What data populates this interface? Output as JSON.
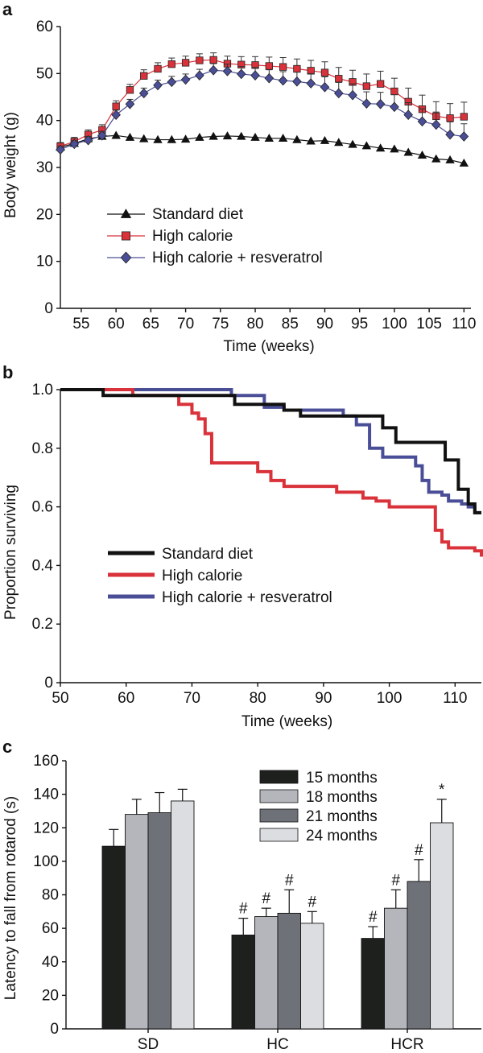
{
  "colors": {
    "standard": "#111111",
    "high_calorie": "#d9323a",
    "resveratrol": "#4a4e96",
    "bar_15": "#1e201e",
    "bar_18": "#b4b6bc",
    "bar_21": "#6e7278",
    "bar_24": "#dcdde1"
  },
  "chart_data": [
    {
      "id": "a",
      "panel_letter": "a",
      "type": "line",
      "xlabel": "Time (weeks)",
      "ylabel": "Body weight (g)",
      "xlim": [
        52,
        111
      ],
      "ylim": [
        0,
        60
      ],
      "xticks": [
        55,
        60,
        65,
        70,
        75,
        80,
        85,
        90,
        95,
        100,
        105,
        110
      ],
      "yticks": [
        0,
        10,
        20,
        30,
        40,
        50,
        60
      ],
      "grid": false,
      "legend_position": "center-left",
      "x": [
        52,
        54,
        56,
        58,
        60,
        62,
        64,
        66,
        68,
        70,
        72,
        74,
        76,
        78,
        80,
        82,
        84,
        86,
        88,
        90,
        92,
        94,
        96,
        98,
        100,
        102,
        104,
        106,
        108,
        110
      ],
      "series": [
        {
          "name": "Standard diet",
          "marker": "triangle",
          "color_key": "standard",
          "values": [
            34.3,
            35.1,
            36.1,
            36.6,
            36.8,
            36.4,
            36.1,
            35.9,
            35.9,
            36.0,
            36.4,
            36.6,
            36.7,
            36.6,
            36.4,
            36.2,
            36.2,
            35.9,
            35.6,
            35.7,
            35.3,
            34.9,
            34.6,
            34.1,
            33.9,
            33.2,
            32.6,
            31.8,
            31.6,
            30.9
          ],
          "errors": [
            0.6,
            0.6,
            0.6,
            0.6,
            0.6,
            0.6,
            0.6,
            0.6,
            0.6,
            0.6,
            0.6,
            0.6,
            0.6,
            0.6,
            0.6,
            0.6,
            0.6,
            0.6,
            0.6,
            0.6,
            0.6,
            0.6,
            0.6,
            0.6,
            0.6,
            0.6,
            0.6,
            0.6,
            0.6,
            0.6
          ]
        },
        {
          "name": "High calorie",
          "marker": "square",
          "color_key": "high_calorie",
          "values": [
            34.5,
            35.5,
            37.0,
            38.0,
            43.0,
            46.5,
            49.5,
            51.0,
            52.0,
            52.3,
            52.8,
            52.9,
            52.1,
            51.9,
            51.8,
            51.6,
            51.4,
            51.0,
            50.6,
            50.2,
            48.9,
            48.2,
            47.3,
            47.8,
            46.2,
            44.0,
            42.4,
            40.9,
            40.5,
            40.8
          ],
          "errors": [
            0.8,
            0.9,
            1.0,
            1.1,
            1.2,
            1.2,
            1.3,
            1.3,
            1.3,
            1.4,
            1.4,
            1.5,
            1.6,
            1.7,
            1.8,
            1.9,
            2.0,
            2.1,
            2.2,
            2.3,
            2.4,
            2.5,
            2.6,
            2.7,
            2.8,
            2.9,
            3.0,
            3.1,
            3.1,
            3.1
          ]
        },
        {
          "name": "High calorie + resveratrol",
          "marker": "diamond",
          "color_key": "resveratrol",
          "values": [
            33.8,
            35.0,
            35.8,
            36.8,
            41.2,
            43.5,
            45.8,
            47.5,
            48.2,
            48.7,
            49.6,
            50.7,
            50.5,
            49.9,
            49.6,
            49.0,
            48.5,
            48.3,
            47.9,
            47.1,
            45.8,
            45.4,
            43.6,
            43.5,
            42.9,
            41.2,
            39.8,
            39.1,
            37.0,
            36.6
          ],
          "errors": [
            0.7,
            0.7,
            0.8,
            0.9,
            1.0,
            1.0,
            1.1,
            1.1,
            1.2,
            1.2,
            1.3,
            1.4,
            1.5,
            1.6,
            1.7,
            1.8,
            1.9,
            2.0,
            2.1,
            2.2,
            2.3,
            2.4,
            2.5,
            2.5,
            2.6,
            2.6,
            2.7,
            2.7,
            2.7,
            2.7
          ]
        }
      ]
    },
    {
      "id": "b",
      "panel_letter": "b",
      "type": "line",
      "step": true,
      "xlabel": "Time (weeks)",
      "ylabel": "Proportion surviving",
      "xlim": [
        50,
        114
      ],
      "ylim": [
        0,
        1.0
      ],
      "xticks": [
        50,
        60,
        70,
        80,
        90,
        100,
        110
      ],
      "ytick_labels": [
        "0",
        "0.2",
        "0.4",
        "0.6",
        "0.8",
        "1.0"
      ],
      "yticks": [
        0,
        0.2,
        0.4,
        0.6,
        0.8,
        1.0
      ],
      "grid": false,
      "legend_position": "center-left",
      "series": [
        {
          "name": "Standard diet",
          "color_key": "standard",
          "x": [
            50,
            56.5,
            58,
            76.5,
            78,
            84,
            86.5,
            96,
            99,
            101,
            105,
            108.5,
            110.5,
            112,
            113,
            114
          ],
          "values": [
            1.0,
            0.98,
            0.98,
            0.95,
            0.95,
            0.93,
            0.91,
            0.91,
            0.87,
            0.82,
            0.82,
            0.76,
            0.66,
            0.61,
            0.58,
            0.58
          ]
        },
        {
          "name": "High calorie",
          "color_key": "high_calorie",
          "x": [
            50,
            60,
            61,
            66,
            68,
            69,
            70,
            71,
            72,
            73,
            76,
            79,
            80,
            82,
            84,
            88,
            92,
            94,
            96,
            98,
            100,
            106,
            107,
            108,
            109,
            112,
            113,
            114
          ],
          "values": [
            1.0,
            1.0,
            0.98,
            0.98,
            0.95,
            0.95,
            0.92,
            0.9,
            0.85,
            0.75,
            0.75,
            0.75,
            0.72,
            0.69,
            0.67,
            0.67,
            0.65,
            0.65,
            0.63,
            0.62,
            0.6,
            0.6,
            0.52,
            0.48,
            0.46,
            0.46,
            0.45,
            0.43
          ]
        },
        {
          "name": "High calorie + resveratrol",
          "color_key": "resveratrol",
          "x": [
            50,
            75,
            76,
            79,
            81,
            84,
            93,
            95,
            97,
            99,
            100,
            103,
            104,
            105,
            106,
            108,
            109,
            111,
            112,
            113,
            114
          ],
          "values": [
            1.0,
            1.0,
            0.98,
            0.98,
            0.94,
            0.93,
            0.91,
            0.88,
            0.8,
            0.77,
            0.77,
            0.77,
            0.74,
            0.69,
            0.65,
            0.64,
            0.62,
            0.61,
            0.6,
            0.58,
            0.58
          ]
        }
      ]
    },
    {
      "id": "c",
      "panel_letter": "c",
      "type": "bar",
      "xlabel": "",
      "ylabel": "Latency to fall from rotarod (s)",
      "ylim": [
        0,
        160
      ],
      "yticks": [
        0,
        20,
        40,
        60,
        80,
        100,
        120,
        140,
        160
      ],
      "grid": false,
      "legend_position": "top-right",
      "categories": [
        "SD",
        "HC",
        "HCR"
      ],
      "series": [
        {
          "name": "15 months",
          "color_key": "bar_15",
          "values": [
            109,
            56,
            54
          ],
          "errors": [
            10,
            10,
            7
          ],
          "annotations": [
            "",
            "#",
            "#"
          ]
        },
        {
          "name": "18 months",
          "color_key": "bar_18",
          "values": [
            128,
            67,
            72
          ],
          "errors": [
            9,
            5,
            11
          ],
          "annotations": [
            "",
            "#",
            "#"
          ]
        },
        {
          "name": "21 months",
          "color_key": "bar_21",
          "values": [
            129,
            69,
            88
          ],
          "errors": [
            12,
            14,
            13
          ],
          "annotations": [
            "",
            "#",
            "#"
          ]
        },
        {
          "name": "24 months",
          "color_key": "bar_24",
          "values": [
            136,
            63,
            123
          ],
          "errors": [
            7,
            7,
            14
          ],
          "annotations": [
            "",
            "#",
            "*"
          ]
        }
      ]
    }
  ]
}
